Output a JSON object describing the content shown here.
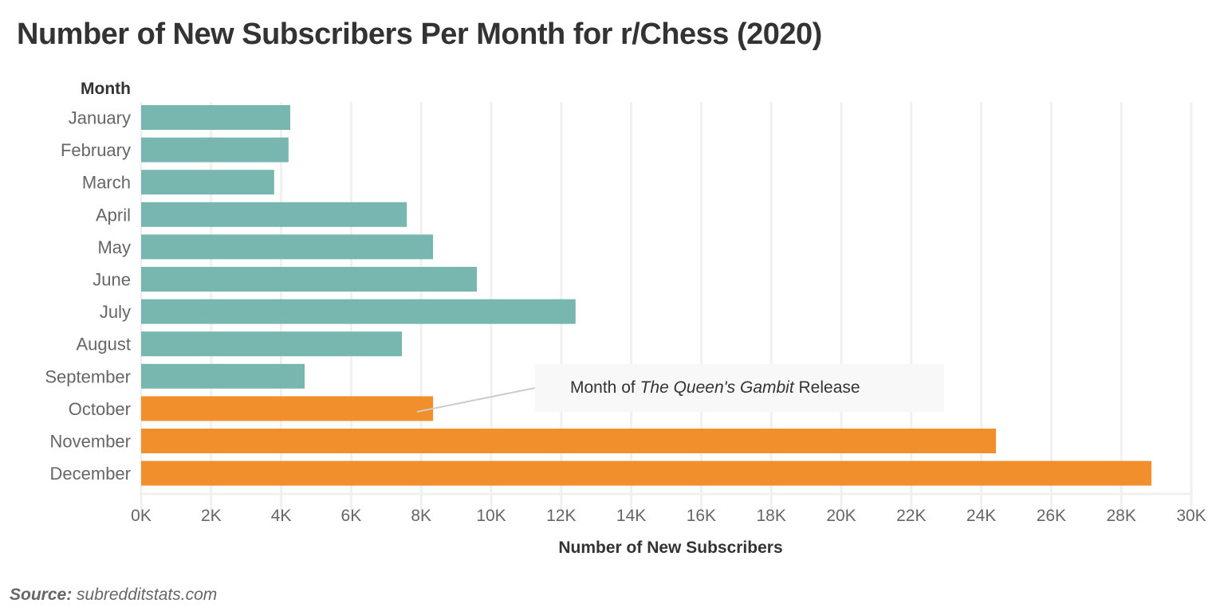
{
  "chart_data": {
    "type": "bar",
    "orientation": "horizontal",
    "title": "Number of New Subscribers Per Month for r/Chess (2020)",
    "xlabel": "Number of New Subscribers",
    "ylabel": "Month",
    "categories": [
      "January",
      "February",
      "March",
      "April",
      "May",
      "June",
      "July",
      "August",
      "September",
      "October",
      "November",
      "December"
    ],
    "values": [
      4260,
      4210,
      3800,
      7590,
      8340,
      9590,
      12410,
      7450,
      4670,
      8340,
      24420,
      28860
    ],
    "highlight": [
      false,
      false,
      false,
      false,
      false,
      false,
      false,
      false,
      false,
      true,
      true,
      true
    ],
    "colors": {
      "default": "#78b6b0",
      "highlight": "#f28f2d",
      "grid": "#f0f0f0",
      "annotation_line": "#cccccc"
    },
    "xlim": [
      0,
      30000
    ],
    "xticks": [
      0,
      2000,
      4000,
      6000,
      8000,
      10000,
      12000,
      14000,
      16000,
      18000,
      20000,
      22000,
      24000,
      26000,
      28000,
      30000
    ],
    "xtick_labels": [
      "0K",
      "2K",
      "4K",
      "6K",
      "8K",
      "10K",
      "12K",
      "14K",
      "16K",
      "18K",
      "20K",
      "22K",
      "24K",
      "26K",
      "28K",
      "30K"
    ],
    "grid": true,
    "legend": "none",
    "annotation": {
      "target": "October",
      "prefix": "Month of ",
      "italic": "The Queen's Gambit",
      "suffix": " Release"
    },
    "source_label": "Source:",
    "source_value": " subredditstats.com"
  }
}
